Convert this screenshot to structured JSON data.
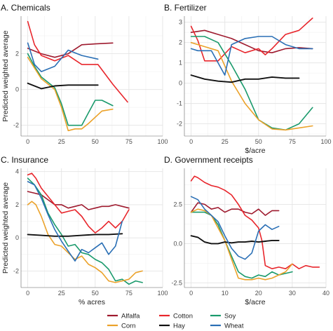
{
  "figure": {
    "ylabel": "Predicted weighted average"
  },
  "legend": {
    "entries": [
      {
        "name": "Alfalfa",
        "color": "#9e1a2e"
      },
      {
        "name": "Cotton",
        "color": "#e8262c"
      },
      {
        "name": "Soy",
        "color": "#1a9a6c"
      },
      {
        "name": "Corn",
        "color": "#eba22a"
      },
      {
        "name": "Hay",
        "color": "#111111"
      },
      {
        "name": "Wheat",
        "color": "#2a6fb5"
      }
    ]
  },
  "chart_data": [
    {
      "type": "line",
      "title": "A. Chemicals",
      "xlabel": "",
      "ylabel": "Predicted weighted average",
      "xlim": [
        -5,
        100
      ],
      "ylim": [
        -2.6,
        4.1
      ],
      "xticks": [
        0,
        25,
        50,
        75,
        100
      ],
      "yticks": [
        -2,
        0,
        2
      ],
      "grid": true,
      "series": [
        {
          "name": "Alfalfa",
          "color": "#9e1a2e",
          "x": [
            0,
            10,
            20,
            30,
            40,
            50,
            63
          ],
          "y": [
            2.3,
            2.0,
            1.8,
            2.0,
            2.5,
            2.55,
            2.6
          ]
        },
        {
          "name": "Cotton",
          "color": "#e8262c",
          "x": [
            0,
            5,
            10,
            20,
            30,
            40,
            52,
            63,
            74
          ],
          "y": [
            3.8,
            2.5,
            1.9,
            1.6,
            1.9,
            1.4,
            1.4,
            0.3,
            -0.7
          ]
        },
        {
          "name": "Soy",
          "color": "#1a9a6c",
          "x": [
            0,
            5,
            10,
            20,
            25,
            30,
            35,
            40,
            45,
            50,
            55,
            63
          ],
          "y": [
            2.0,
            1.3,
            0.7,
            0.1,
            -0.8,
            -2.0,
            -2.0,
            -2.0,
            -1.3,
            -0.6,
            -0.6,
            -0.9
          ]
        },
        {
          "name": "Corn",
          "color": "#eba22a",
          "x": [
            0,
            10,
            20,
            25,
            30,
            35,
            40,
            45,
            55,
            63
          ],
          "y": [
            1.8,
            0.6,
            0.0,
            -1.0,
            -2.3,
            -2.2,
            -2.2,
            -1.9,
            -1.2,
            -1.1
          ]
        },
        {
          "name": "Hay",
          "color": "#111111",
          "x": [
            0,
            10,
            20,
            30,
            40,
            52
          ],
          "y": [
            0.35,
            0.05,
            0.2,
            0.25,
            0.25,
            0.25
          ]
        },
        {
          "name": "Wheat",
          "color": "#2a6fb5",
          "x": [
            0,
            5,
            10,
            20,
            30,
            40,
            52
          ],
          "y": [
            2.6,
            1.4,
            1.0,
            1.3,
            2.2,
            1.9,
            1.7
          ]
        }
      ]
    },
    {
      "type": "line",
      "title": "B. Fertilizer",
      "xlabel": "$/acre",
      "ylabel": "",
      "xlim": [
        -5,
        100
      ],
      "ylim": [
        -2.6,
        3.3
      ],
      "xticks": [
        0,
        25,
        50,
        75,
        100
      ],
      "yticks": [
        -2,
        -1,
        0,
        1,
        2,
        3
      ],
      "grid": true,
      "series": [
        {
          "name": "Alfalfa",
          "color": "#9e1a2e",
          "x": [
            0,
            10,
            20,
            30,
            40,
            50,
            60,
            70,
            80,
            90
          ],
          "y": [
            2.5,
            2.6,
            2.4,
            2.2,
            1.9,
            1.6,
            1.5,
            1.7,
            1.75,
            1.7
          ]
        },
        {
          "name": "Cotton",
          "color": "#e8262c",
          "x": [
            0,
            5,
            10,
            20,
            30,
            40,
            50,
            55,
            60,
            70,
            80,
            90
          ],
          "y": [
            2.8,
            2.1,
            1.1,
            1.1,
            1.8,
            1.5,
            1.7,
            1.4,
            1.7,
            2.4,
            2.6,
            3.2
          ]
        },
        {
          "name": "Soy",
          "color": "#1a9a6c",
          "x": [
            0,
            10,
            20,
            30,
            40,
            50,
            60,
            70,
            80,
            90
          ],
          "y": [
            2.3,
            2.3,
            2.0,
            0.9,
            -0.3,
            -1.8,
            -2.2,
            -2.3,
            -2.0,
            -1.2
          ]
        },
        {
          "name": "Corn",
          "color": "#eba22a",
          "x": [
            0,
            10,
            20,
            30,
            40,
            50,
            60,
            70,
            80,
            90
          ],
          "y": [
            2.0,
            1.8,
            1.6,
            0.1,
            -1.0,
            -1.8,
            -2.25,
            -2.3,
            -2.2,
            -2.1
          ]
        },
        {
          "name": "Hay",
          "color": "#111111",
          "x": [
            0,
            10,
            20,
            30,
            40,
            50,
            60,
            70,
            80
          ],
          "y": [
            0.4,
            0.2,
            0.1,
            0.05,
            0.2,
            0.2,
            0.3,
            0.25,
            0.25
          ]
        },
        {
          "name": "Wheat",
          "color": "#2a6fb5",
          "x": [
            0,
            5,
            15,
            25,
            30,
            40,
            50,
            60,
            70,
            80,
            90
          ],
          "y": [
            1.7,
            1.6,
            1.6,
            0.4,
            1.9,
            2.2,
            2.3,
            2.3,
            1.9,
            1.7,
            1.7
          ]
        }
      ]
    },
    {
      "type": "line",
      "title": "C. Insurance",
      "xlabel": "% acres",
      "ylabel": "Predicted weighted average",
      "xlim": [
        -5,
        100
      ],
      "ylim": [
        -3.0,
        4.2
      ],
      "xticks": [
        0,
        25,
        50,
        75,
        100
      ],
      "yticks": [
        -2,
        0,
        2,
        4
      ],
      "grid": true,
      "series": [
        {
          "name": "Alfalfa",
          "color": "#9e1a2e",
          "x": [
            0,
            5,
            10,
            15,
            20,
            25,
            30,
            35,
            40,
            45,
            50,
            55,
            60,
            65,
            70,
            75
          ],
          "y": [
            2.8,
            2.7,
            2.6,
            2.3,
            2.0,
            2.0,
            1.8,
            1.9,
            2.0,
            1.7,
            1.8,
            1.9,
            1.9,
            2.0,
            1.9,
            1.8
          ]
        },
        {
          "name": "Cotton",
          "color": "#e8262c",
          "x": [
            0,
            3,
            6,
            10,
            15,
            20,
            25,
            30,
            35,
            40,
            45,
            50,
            55,
            60,
            65,
            70,
            75
          ],
          "y": [
            3.8,
            3.9,
            3.6,
            3.0,
            2.5,
            2.0,
            1.5,
            1.6,
            1.7,
            1.3,
            0.7,
            0.3,
            0.6,
            1.0,
            0.6,
            1.0,
            1.7
          ]
        },
        {
          "name": "Soy",
          "color": "#1a9a6c",
          "x": [
            0,
            5,
            10,
            15,
            20,
            25,
            30,
            35,
            40,
            45,
            50,
            55,
            60,
            65,
            70,
            75,
            80,
            85
          ],
          "y": [
            3.6,
            3.2,
            2.6,
            1.5,
            0.8,
            0.2,
            -0.5,
            -0.4,
            -0.9,
            -1.0,
            -1.3,
            -1.5,
            -1.9,
            -2.6,
            -2.5,
            -2.8,
            -2.6,
            -2.7
          ]
        },
        {
          "name": "Corn",
          "color": "#eba22a",
          "x": [
            0,
            3,
            6,
            10,
            15,
            20,
            25,
            30,
            35,
            40,
            45,
            50,
            55,
            60,
            65,
            70,
            75,
            80,
            85
          ],
          "y": [
            2.0,
            2.2,
            2.0,
            1.3,
            0.2,
            -0.4,
            -0.5,
            -0.9,
            -1.3,
            -1.1,
            -1.6,
            -1.8,
            -2.1,
            -2.6,
            -2.7,
            -2.6,
            -2.5,
            -2.1,
            -2.0
          ]
        },
        {
          "name": "Hay",
          "color": "#111111",
          "x": [
            0,
            10,
            20,
            30,
            40,
            50,
            60,
            70
          ],
          "y": [
            0.2,
            0.15,
            0.1,
            0.1,
            0.15,
            0.2,
            0.2,
            0.25
          ]
        },
        {
          "name": "Wheat",
          "color": "#2a6fb5",
          "x": [
            0,
            5,
            10,
            15,
            20,
            25,
            30,
            35,
            40,
            45,
            50,
            55,
            60,
            65,
            70
          ],
          "y": [
            3.4,
            3.2,
            2.4,
            1.4,
            0.5,
            -0.2,
            -0.8,
            -1.4,
            -0.7,
            -0.9,
            -0.6,
            -0.3,
            -1.0,
            -0.5,
            1.0
          ]
        }
      ]
    },
    {
      "type": "line",
      "title": "D. Government receipts",
      "xlabel": "$/acre",
      "ylabel": "",
      "xlim": [
        -2,
        40
      ],
      "ylim": [
        -2.8,
        4.8
      ],
      "xticks": [
        0,
        10,
        20,
        30,
        40
      ],
      "yticks": [
        -2.5,
        0.0,
        2.5
      ],
      "grid": true,
      "series": [
        {
          "name": "Alfalfa",
          "color": "#9e1a2e",
          "x": [
            0,
            2,
            4,
            6,
            8,
            10,
            12,
            14,
            16,
            18,
            20,
            22,
            24,
            26
          ],
          "y": [
            2.0,
            2.6,
            2.5,
            2.2,
            2.3,
            2.0,
            2.2,
            2.2,
            2.0,
            1.9,
            2.2,
            1.8,
            2.1,
            2.1
          ]
        },
        {
          "name": "Cotton",
          "color": "#e8262c",
          "x": [
            0,
            1,
            2,
            4,
            6,
            8,
            10,
            12,
            14,
            16,
            18,
            20,
            21,
            22,
            24,
            26,
            28,
            30,
            32,
            34,
            36,
            38
          ],
          "y": [
            4.0,
            4.3,
            4.2,
            3.9,
            3.7,
            3.6,
            3.4,
            3.1,
            2.5,
            1.8,
            1.5,
            1.0,
            0.2,
            -1.4,
            -1.6,
            -1.5,
            -1.6,
            -1.3,
            -1.6,
            -1.4,
            -1.5,
            -1.5
          ]
        },
        {
          "name": "Soy",
          "color": "#1a9a6c",
          "x": [
            0,
            2,
            4,
            6,
            8,
            10,
            12,
            14,
            16,
            18,
            20,
            22,
            24,
            26,
            28,
            30
          ],
          "y": [
            2.0,
            2.0,
            2.0,
            1.8,
            1.2,
            0.2,
            -0.8,
            -1.8,
            -2.1,
            -2.2,
            -2.0,
            -2.1,
            -1.8,
            -2.0,
            -1.9,
            -1.8
          ]
        },
        {
          "name": "Corn",
          "color": "#eba22a",
          "x": [
            0,
            2,
            4,
            6,
            8,
            10,
            12,
            14,
            16,
            18,
            20,
            22,
            24,
            26,
            28,
            30
          ],
          "y": [
            2.0,
            2.2,
            2.1,
            1.8,
            1.0,
            0.2,
            -1.0,
            -2.2,
            -2.3,
            -2.3,
            -2.2,
            -2.3,
            -2.2,
            -2.0,
            -1.8,
            -1.3
          ]
        },
        {
          "name": "Hay",
          "color": "#111111",
          "x": [
            0,
            2,
            4,
            6,
            8,
            10,
            12,
            14,
            16,
            18,
            20,
            22,
            24,
            26
          ],
          "y": [
            0.5,
            0.4,
            0.1,
            0.0,
            0.0,
            0.1,
            0.05,
            0.1,
            0.1,
            0.15,
            0.1,
            0.15,
            0.2,
            0.2
          ]
        },
        {
          "name": "Wheat",
          "color": "#2a6fb5",
          "x": [
            0,
            2,
            4,
            6,
            8,
            10,
            12,
            14,
            16,
            18,
            20,
            22,
            24,
            26
          ],
          "y": [
            3.0,
            2.8,
            2.2,
            1.8,
            1.4,
            0.5,
            -0.3,
            -0.8,
            -1.0,
            -0.6,
            0.8,
            1.2,
            0.9,
            1.1
          ]
        }
      ]
    }
  ]
}
